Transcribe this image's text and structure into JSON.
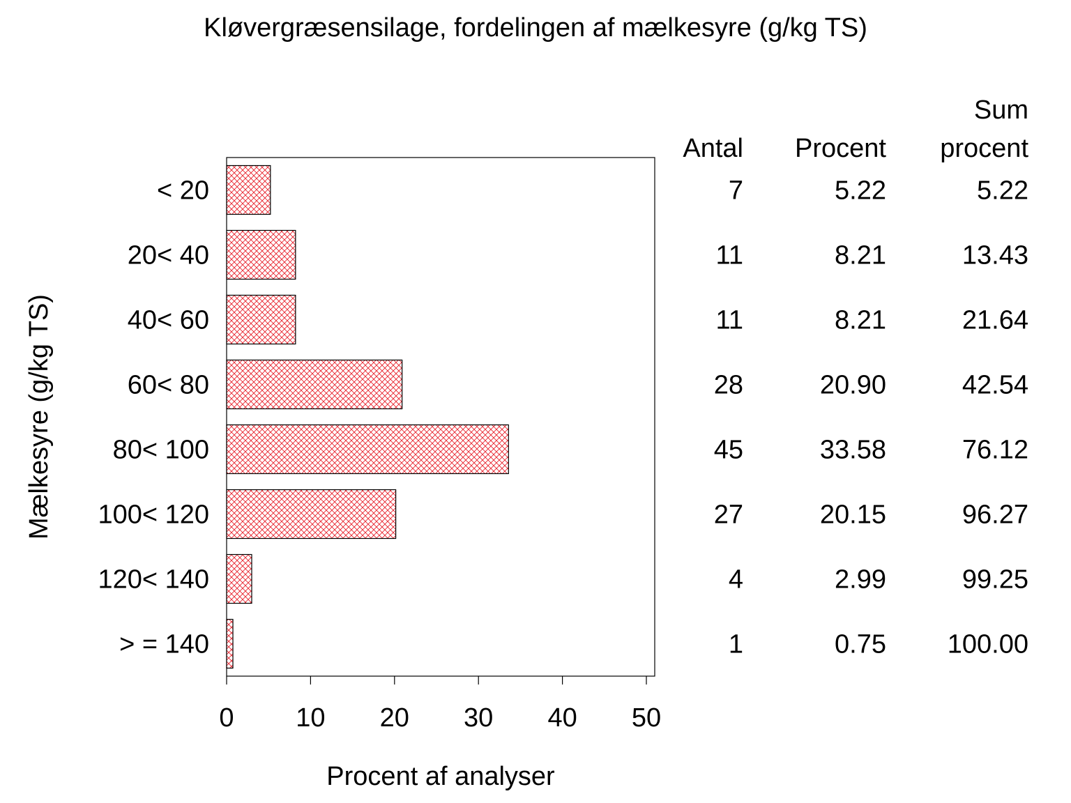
{
  "chart_data": {
    "type": "bar",
    "orientation": "horizontal",
    "title": "Kløvergræsensilage, fordelingen af mælkesyre (g/kg TS)",
    "xlabel": "Procent af analyser",
    "ylabel": "Mælkesyre (g/kg TS)",
    "xlim": [
      0,
      51
    ],
    "xticks": [
      "0",
      "10",
      "20",
      "30",
      "40",
      "50"
    ],
    "categories": [
      "< 20",
      "20< 40",
      "40< 60",
      "60< 80",
      "80< 100",
      "100< 120",
      "120< 140",
      "> = 140"
    ],
    "values": [
      5.22,
      8.21,
      8.21,
      20.9,
      33.58,
      20.15,
      2.99,
      0.75
    ],
    "bar_color": "#e8202a",
    "bar_fill": "crosshatch",
    "grid": false,
    "table": {
      "headers": {
        "antal": [
          "",
          "Antal"
        ],
        "procent": [
          "",
          "Procent"
        ],
        "sum_procent": [
          "Sum",
          "procent"
        ]
      },
      "rows": [
        {
          "antal": "7",
          "procent": "5.22",
          "sum": "5.22"
        },
        {
          "antal": "11",
          "procent": "8.21",
          "sum": "13.43"
        },
        {
          "antal": "11",
          "procent": "8.21",
          "sum": "21.64"
        },
        {
          "antal": "28",
          "procent": "20.90",
          "sum": "42.54"
        },
        {
          "antal": "45",
          "procent": "33.58",
          "sum": "76.12"
        },
        {
          "antal": "27",
          "procent": "20.15",
          "sum": "96.27"
        },
        {
          "antal": "4",
          "procent": "2.99",
          "sum": "99.25"
        },
        {
          "antal": "1",
          "procent": "0.75",
          "sum": "100.00"
        }
      ]
    }
  }
}
